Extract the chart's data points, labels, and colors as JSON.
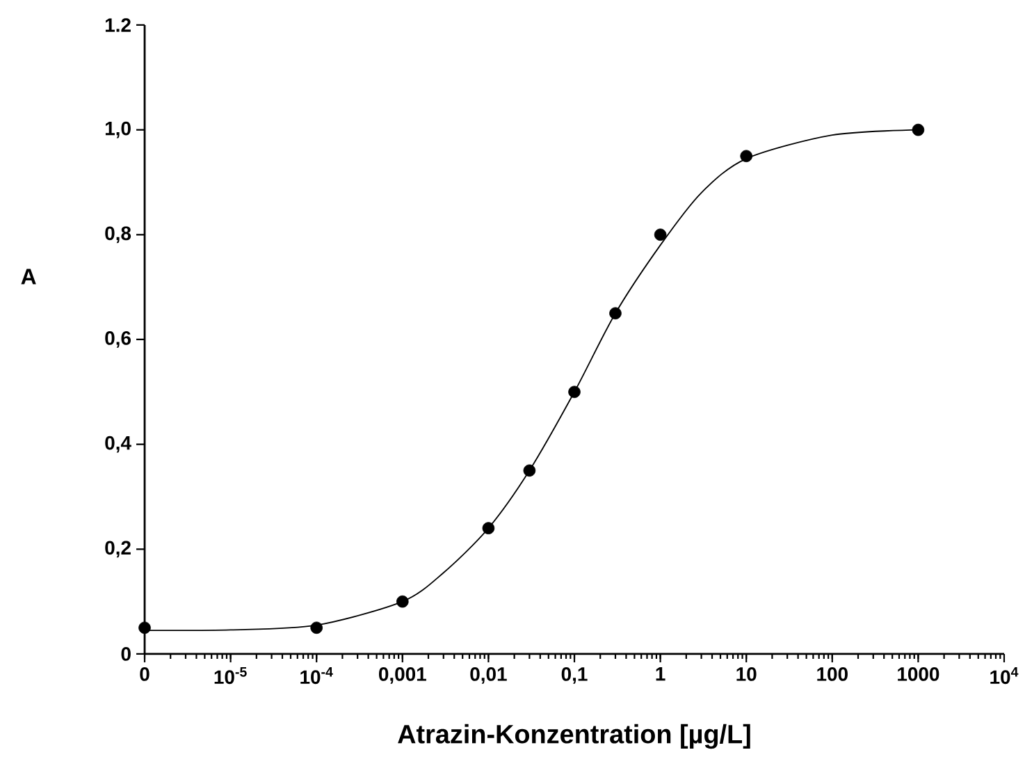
{
  "chart_data": {
    "type": "scatter",
    "xlabel": "Atrazin-Konzentration [µg/L]",
    "ylabel": "A",
    "log": "x",
    "xlim": [
      1e-06,
      10000
    ],
    "ylim": [
      0,
      1.2
    ],
    "xticks": [
      {
        "value": 1e-06,
        "label": "0"
      },
      {
        "value": 1e-05,
        "label": "10$^{-5}$"
      },
      {
        "value": 0.0001,
        "label": "10$^{-4}$"
      },
      {
        "value": 0.001,
        "label": "0,001"
      },
      {
        "value": 0.01,
        "label": "0,01"
      },
      {
        "value": 0.1,
        "label": "0,1"
      },
      {
        "value": 1,
        "label": "1"
      },
      {
        "value": 10,
        "label": "10"
      },
      {
        "value": 100,
        "label": "100"
      },
      {
        "value": 1000,
        "label": "1000"
      },
      {
        "value": 10000,
        "label": "10$^{4}$"
      }
    ],
    "yticks": [
      0,
      {
        "value": 0.2,
        "label": "0,2"
      },
      {
        "value": 0.4,
        "label": "0,4"
      },
      {
        "value": 0.6,
        "label": "0,6"
      },
      {
        "value": 0.8,
        "label": "0,8"
      },
      {
        "value": 1.0,
        "label": "1,0"
      },
      {
        "value": 1.2,
        "label": "1.2"
      }
    ],
    "grid": false,
    "series": [
      {
        "marker": "circle",
        "color": "#000000",
        "x": [
          1e-06,
          0.0001,
          0.001,
          0.01,
          0.03,
          0.1,
          0.3,
          1,
          10,
          1000
        ],
        "values": [
          0.05,
          0.05,
          0.1,
          0.24,
          0.35,
          0.5,
          0.65,
          0.8,
          0.95,
          1.0
        ]
      },
      {
        "type": "line",
        "marker": "none",
        "line_style": "solid",
        "color": "#000000",
        "x": [
          1e-06,
          1e-05,
          0.0001,
          0.001,
          0.003,
          0.01,
          0.03,
          0.1,
          0.3,
          1,
          3,
          10,
          100,
          1000
        ],
        "values": [
          0.045,
          0.046,
          0.055,
          0.1,
          0.155,
          0.24,
          0.35,
          0.5,
          0.65,
          0.78,
          0.88,
          0.945,
          0.99,
          1.0
        ]
      }
    ]
  }
}
